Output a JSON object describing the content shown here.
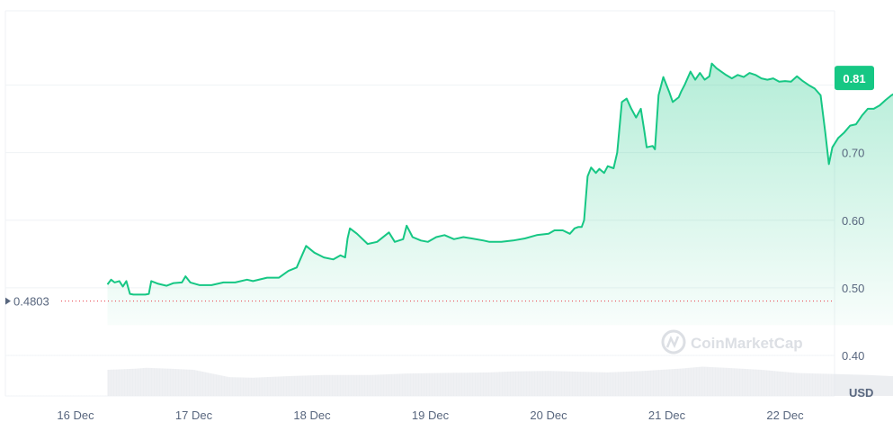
{
  "chart_data": {
    "type": "area",
    "x_labels": [
      "16 Dec",
      "17 Dec",
      "18 Dec",
      "19 Dec",
      "20 Dec",
      "21 Dec",
      "22 Dec"
    ],
    "y_ticks": [
      "0.40",
      "0.50",
      "0.60",
      "0.70"
    ],
    "ylim": [
      0.34,
      0.91
    ],
    "y_unit": "USD",
    "current_price_label": "0.81",
    "current_price": 0.81,
    "open_price_label": "0.4803",
    "open_price": 0.4803,
    "watermark": "CoinMarketCap",
    "grid": "horizontal",
    "series": [
      {
        "line_color": "#16c784",
        "points": [
          [
            15.77,
            0.505
          ],
          [
            15.8,
            0.512
          ],
          [
            15.83,
            0.508
          ],
          [
            15.87,
            0.51
          ],
          [
            15.9,
            0.502
          ],
          [
            15.93,
            0.51
          ],
          [
            15.96,
            0.491
          ],
          [
            15.99,
            0.49
          ],
          [
            16.03,
            0.49
          ],
          [
            16.06,
            0.49
          ],
          [
            16.09,
            0.49
          ],
          [
            16.12,
            0.491
          ],
          [
            16.14,
            0.51
          ],
          [
            16.2,
            0.506
          ],
          [
            16.27,
            0.503
          ],
          [
            16.33,
            0.507
          ],
          [
            16.4,
            0.508
          ],
          [
            16.43,
            0.517
          ],
          [
            16.47,
            0.508
          ],
          [
            16.55,
            0.504
          ],
          [
            16.65,
            0.504
          ],
          [
            16.75,
            0.508
          ],
          [
            16.85,
            0.508
          ],
          [
            16.95,
            0.512
          ],
          [
            17.0,
            0.51
          ],
          [
            17.12,
            0.515
          ],
          [
            17.22,
            0.515
          ],
          [
            17.3,
            0.525
          ],
          [
            17.37,
            0.53
          ],
          [
            17.45,
            0.562
          ],
          [
            17.52,
            0.552
          ],
          [
            17.6,
            0.545
          ],
          [
            17.68,
            0.542
          ],
          [
            17.74,
            0.548
          ],
          [
            17.78,
            0.545
          ],
          [
            17.8,
            0.573
          ],
          [
            17.82,
            0.588
          ],
          [
            17.88,
            0.58
          ],
          [
            17.97,
            0.565
          ],
          [
            18.05,
            0.568
          ],
          [
            18.15,
            0.582
          ],
          [
            18.2,
            0.568
          ],
          [
            18.27,
            0.572
          ],
          [
            18.3,
            0.592
          ],
          [
            18.35,
            0.575
          ],
          [
            18.42,
            0.57
          ],
          [
            18.48,
            0.568
          ],
          [
            18.55,
            0.575
          ],
          [
            18.62,
            0.578
          ],
          [
            18.7,
            0.572
          ],
          [
            18.78,
            0.575
          ],
          [
            18.85,
            0.573
          ],
          [
            18.95,
            0.57
          ],
          [
            19.0,
            0.568
          ],
          [
            19.1,
            0.568
          ],
          [
            19.2,
            0.57
          ],
          [
            19.3,
            0.573
          ],
          [
            19.4,
            0.578
          ],
          [
            19.5,
            0.58
          ],
          [
            19.55,
            0.585
          ],
          [
            19.62,
            0.585
          ],
          [
            19.68,
            0.58
          ],
          [
            19.72,
            0.588
          ],
          [
            19.75,
            0.59
          ],
          [
            19.78,
            0.59
          ],
          [
            19.8,
            0.6
          ],
          [
            19.83,
            0.665
          ],
          [
            19.86,
            0.678
          ],
          [
            19.9,
            0.67
          ],
          [
            19.93,
            0.676
          ],
          [
            19.97,
            0.67
          ],
          [
            20.0,
            0.68
          ],
          [
            20.05,
            0.677
          ],
          [
            20.08,
            0.7
          ],
          [
            20.12,
            0.775
          ],
          [
            20.16,
            0.78
          ],
          [
            20.2,
            0.765
          ],
          [
            20.24,
            0.752
          ],
          [
            20.28,
            0.765
          ],
          [
            20.31,
            0.732
          ],
          [
            20.33,
            0.708
          ],
          [
            20.38,
            0.71
          ],
          [
            20.4,
            0.705
          ],
          [
            20.43,
            0.785
          ],
          [
            20.47,
            0.812
          ],
          [
            20.52,
            0.79
          ],
          [
            20.55,
            0.775
          ],
          [
            20.6,
            0.782
          ],
          [
            20.62,
            0.79
          ],
          [
            20.65,
            0.8
          ],
          [
            20.7,
            0.82
          ],
          [
            20.74,
            0.808
          ],
          [
            20.78,
            0.818
          ],
          [
            20.82,
            0.808
          ],
          [
            20.86,
            0.813
          ],
          [
            20.88,
            0.832
          ],
          [
            20.92,
            0.825
          ],
          [
            20.96,
            0.82
          ],
          [
            21.0,
            0.815
          ],
          [
            21.05,
            0.81
          ],
          [
            21.1,
            0.815
          ],
          [
            21.15,
            0.812
          ],
          [
            21.2,
            0.818
          ],
          [
            21.25,
            0.815
          ],
          [
            21.3,
            0.81
          ],
          [
            21.35,
            0.808
          ],
          [
            21.4,
            0.81
          ],
          [
            21.45,
            0.805
          ],
          [
            21.5,
            0.806
          ],
          [
            21.55,
            0.805
          ],
          [
            21.6,
            0.813
          ],
          [
            21.65,
            0.806
          ],
          [
            21.7,
            0.8
          ],
          [
            21.75,
            0.795
          ],
          [
            21.8,
            0.785
          ],
          [
            21.84,
            0.73
          ],
          [
            21.87,
            0.683
          ],
          [
            21.9,
            0.708
          ],
          [
            21.95,
            0.722
          ],
          [
            22.0,
            0.73
          ],
          [
            22.05,
            0.74
          ],
          [
            22.1,
            0.742
          ],
          [
            22.15,
            0.755
          ],
          [
            22.2,
            0.765
          ],
          [
            22.25,
            0.765
          ],
          [
            22.3,
            0.77
          ],
          [
            22.35,
            0.778
          ],
          [
            22.4,
            0.785
          ],
          [
            22.45,
            0.79
          ],
          [
            22.5,
            0.793
          ],
          [
            22.55,
            0.8
          ],
          [
            22.6,
            0.81
          ]
        ]
      },
      {
        "name": "volume",
        "color": "#e6e8ec",
        "points": [
          [
            15.77,
            0.5
          ],
          [
            16.0,
            0.52
          ],
          [
            16.1,
            0.54
          ],
          [
            16.3,
            0.52
          ],
          [
            16.5,
            0.5
          ],
          [
            16.8,
            0.36
          ],
          [
            17.0,
            0.35
          ],
          [
            17.3,
            0.38
          ],
          [
            17.6,
            0.4
          ],
          [
            18.0,
            0.4
          ],
          [
            18.3,
            0.43
          ],
          [
            18.6,
            0.44
          ],
          [
            19.0,
            0.45
          ],
          [
            19.2,
            0.47
          ],
          [
            19.5,
            0.48
          ],
          [
            19.8,
            0.46
          ],
          [
            20.0,
            0.45
          ],
          [
            20.3,
            0.48
          ],
          [
            20.6,
            0.52
          ],
          [
            20.8,
            0.56
          ],
          [
            21.0,
            0.54
          ],
          [
            21.3,
            0.5
          ],
          [
            21.6,
            0.44
          ],
          [
            21.9,
            0.42
          ],
          [
            22.2,
            0.4
          ],
          [
            22.4,
            0.38
          ],
          [
            22.6,
            0.37
          ]
        ]
      }
    ]
  }
}
